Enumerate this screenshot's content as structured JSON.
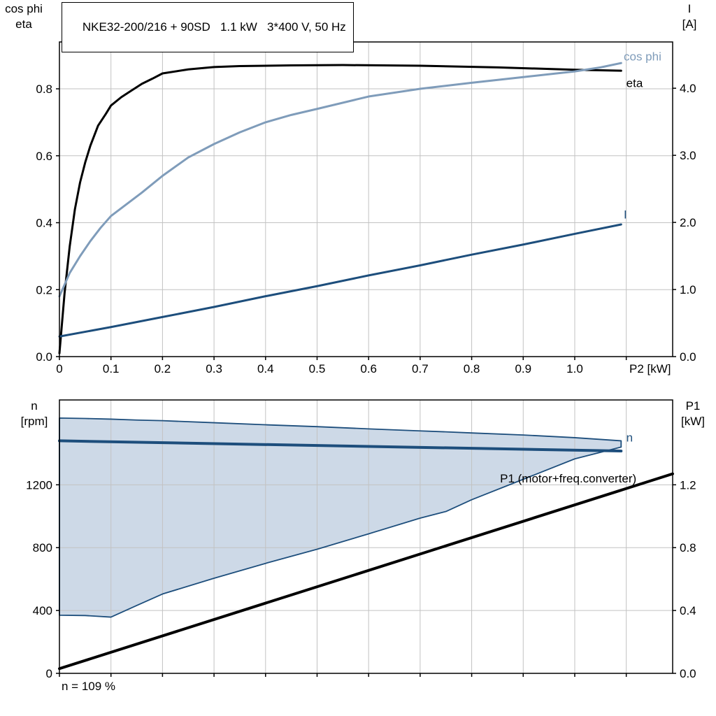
{
  "colors": {
    "black": "#000000",
    "steel_blue": "#7f9cba",
    "dark_blue": "#1d4e7c",
    "band_fill": "#cdd9e7",
    "grid": "#c2c2c2",
    "border": "#000000",
    "background": "#ffffff",
    "text": "#000000"
  },
  "chart_data": [
    {
      "type": "line",
      "title": "NKE32-200/216 + 90SD   1.1 kW   3*400 V, 50 Hz",
      "x_axis": {
        "label": "P2 [kW]",
        "range": [
          0,
          1.19
        ],
        "ticks": [
          0,
          0.1,
          0.2,
          0.3,
          0.4,
          0.5,
          0.6,
          0.7,
          0.8,
          0.9,
          1.0,
          1.1
        ],
        "tick_labels": [
          "0",
          "0.1",
          "0.2",
          "0.3",
          "0.4",
          "0.5",
          "0.6",
          "0.7",
          "0.8",
          "0.9",
          "1.0",
          ""
        ]
      },
      "y_left": {
        "title_lines": [
          "cos phi",
          "eta"
        ],
        "range": [
          0,
          0.94
        ],
        "ticks": [
          0,
          0.2,
          0.4,
          0.6,
          0.8
        ],
        "tick_labels": [
          "0.0",
          "0.2",
          "0.4",
          "0.6",
          "0.8"
        ]
      },
      "y_right": {
        "title_lines": [
          "I",
          "[A]"
        ],
        "range": [
          0,
          4.69
        ],
        "ticks": [
          0,
          1,
          2,
          3,
          4
        ],
        "tick_labels": [
          "0.0",
          "1.0",
          "2.0",
          "3.0",
          "4.0"
        ]
      },
      "series": [
        {
          "name": "eta",
          "axis": "left",
          "color": "black",
          "width": 3,
          "x": [
            0,
            0.005,
            0.01,
            0.02,
            0.03,
            0.04,
            0.05,
            0.06,
            0.075,
            0.09,
            0.1,
            0.12,
            0.14,
            0.16,
            0.18,
            0.2,
            0.25,
            0.3,
            0.35,
            0.45,
            0.55,
            0.7,
            0.85,
            1.0,
            1.09
          ],
          "y": [
            0.01,
            0.1,
            0.19,
            0.33,
            0.44,
            0.52,
            0.58,
            0.63,
            0.69,
            0.725,
            0.75,
            0.775,
            0.795,
            0.815,
            0.83,
            0.846,
            0.858,
            0.865,
            0.868,
            0.87,
            0.871,
            0.869,
            0.864,
            0.857,
            0.854
          ],
          "label": {
            "text": "eta",
            "x": 1.1,
            "y": 0.805
          }
        },
        {
          "name": "cos phi",
          "axis": "left",
          "color": "steel_blue",
          "width": 3,
          "x": [
            0,
            0.01,
            0.02,
            0.04,
            0.06,
            0.08,
            0.1,
            0.13,
            0.16,
            0.2,
            0.25,
            0.3,
            0.35,
            0.4,
            0.45,
            0.5,
            0.6,
            0.7,
            0.8,
            0.9,
            1.0,
            1.05,
            1.09
          ],
          "y": [
            0.18,
            0.215,
            0.25,
            0.3,
            0.345,
            0.385,
            0.42,
            0.455,
            0.49,
            0.54,
            0.595,
            0.635,
            0.67,
            0.7,
            0.722,
            0.74,
            0.777,
            0.8,
            0.818,
            0.835,
            0.852,
            0.864,
            0.877
          ],
          "label": {
            "text": "cos phi",
            "x": 1.095,
            "y": 0.885
          }
        },
        {
          "name": "I",
          "axis": "right",
          "color": "dark_blue",
          "width": 3,
          "x": [
            0,
            0.1,
            0.2,
            0.3,
            0.4,
            0.5,
            0.6,
            0.7,
            0.8,
            0.9,
            1.0,
            1.09
          ],
          "y": [
            0.3,
            0.44,
            0.59,
            0.74,
            0.9,
            1.05,
            1.21,
            1.36,
            1.52,
            1.67,
            1.83,
            1.97
          ],
          "label": {
            "text": "I",
            "x": 1.095,
            "y": 2.06
          }
        }
      ]
    },
    {
      "type": "line",
      "x_axis": {
        "label": "",
        "range": [
          0,
          1.19
        ],
        "ticks": [
          0,
          0.1,
          0.2,
          0.3,
          0.4,
          0.5,
          0.6,
          0.7,
          0.8,
          0.9,
          1.0,
          1.1
        ],
        "tick_labels": [
          "",
          "",
          "",
          "",
          "",
          "",
          "",
          "",
          "",
          "",
          "",
          ""
        ]
      },
      "y_left": {
        "title_lines": [
          "n",
          "[rpm]"
        ],
        "range": [
          0,
          1740
        ],
        "ticks": [
          0,
          400,
          800,
          1200
        ],
        "tick_labels": [
          "0",
          "400",
          "800",
          "1200"
        ]
      },
      "y_right": {
        "title_lines": [
          "P1",
          "[kW]"
        ],
        "range": [
          0,
          1.74
        ],
        "ticks": [
          0,
          0.4,
          0.8,
          1.2
        ],
        "tick_labels": [
          "0.0",
          "0.4",
          "0.8",
          "1.2"
        ]
      },
      "band": {
        "name": "speed-control-range",
        "axis": "left",
        "fill": "band_fill",
        "edge": "dark_blue",
        "x": [
          0,
          0.05,
          0.1,
          0.15,
          0.2,
          0.3,
          0.4,
          0.5,
          0.6,
          0.7,
          0.75,
          0.8,
          0.9,
          1.0,
          1.09
        ],
        "upper": [
          1625,
          1622,
          1618,
          1612,
          1608,
          1595,
          1582,
          1570,
          1556,
          1543,
          1537,
          1530,
          1517,
          1500,
          1480
        ],
        "lower": [
          370,
          368,
          358,
          432,
          505,
          605,
          700,
          790,
          888,
          988,
          1030,
          1105,
          1235,
          1365,
          1440
        ]
      },
      "series": [
        {
          "name": "n",
          "axis": "left",
          "color": "dark_blue",
          "width": 4,
          "x": [
            0,
            1.09
          ],
          "y": [
            1480,
            1415
          ],
          "label": {
            "text": "n",
            "x": 1.1,
            "y": 1475
          }
        },
        {
          "name": "P1",
          "axis": "right",
          "color": "black",
          "width": 4,
          "x": [
            0,
            1.19
          ],
          "y": [
            0.03,
            1.27
          ],
          "label": {
            "text": "P1 (motor+freq.converter)",
            "x": 0.855,
            "y": 1.215
          }
        }
      ],
      "annotation": "n = 109 %"
    }
  ]
}
